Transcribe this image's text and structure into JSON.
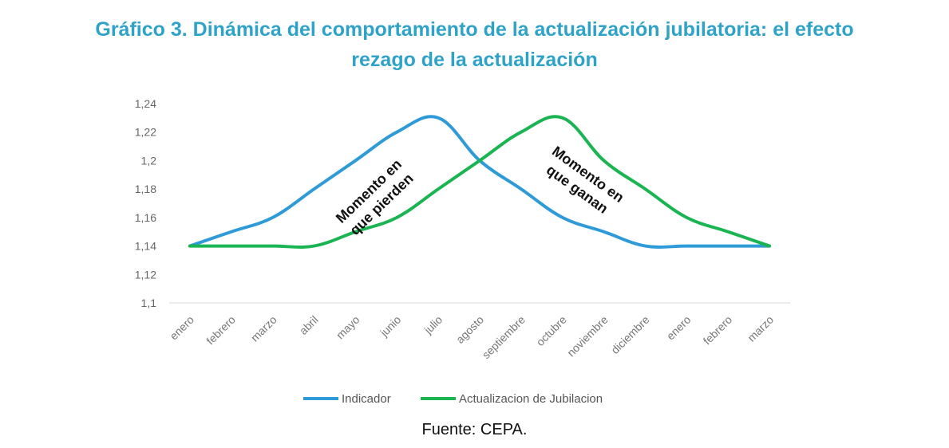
{
  "title_line1": "Gráfico 3. Dinámica del comportamiento de la actualización jubilatoria: el efecto",
  "title_line2": "rezago de la actualización",
  "source": "Fuente: CEPA.",
  "colors": {
    "title": "#2fa3c7",
    "indicador": "#2e9bd8",
    "jubilacion": "#1ab552"
  },
  "chart_data": {
    "type": "line",
    "title": "Gráfico 3. Dinámica del comportamiento de la actualización jubilatoria: el efecto rezago de la actualización",
    "categories": [
      "enero",
      "febrero",
      "marzo",
      "abril",
      "mayo",
      "junio",
      "julio",
      "agosto",
      "septiembre",
      "octubre",
      "noviembre",
      "diciembre",
      "enero",
      "febrero",
      "marzo"
    ],
    "series": [
      {
        "name": "Indicador",
        "color": "#2e9bd8",
        "values": [
          1.14,
          1.15,
          1.16,
          1.18,
          1.2,
          1.22,
          1.23,
          1.2,
          1.18,
          1.16,
          1.15,
          1.14,
          1.14,
          1.14,
          1.14
        ]
      },
      {
        "name": "Actualizacion de Jubilacion",
        "color": "#1ab552",
        "values": [
          1.14,
          1.14,
          1.14,
          1.14,
          1.15,
          1.16,
          1.18,
          1.2,
          1.22,
          1.23,
          1.2,
          1.18,
          1.16,
          1.15,
          1.14
        ]
      }
    ],
    "y_ticks": [
      "1,1",
      "1,12",
      "1,14",
      "1,16",
      "1,18",
      "1,2",
      "1,22",
      "1,24"
    ],
    "ylim": [
      1.1,
      1.24
    ],
    "annotations": [
      {
        "name": "pierden",
        "lines": [
          "Momento en",
          "que pierden"
        ]
      },
      {
        "name": "ganan",
        "lines": [
          "Momento en",
          "que ganan"
        ]
      }
    ],
    "legend_position": "bottom",
    "xlabel": "",
    "ylabel": ""
  }
}
